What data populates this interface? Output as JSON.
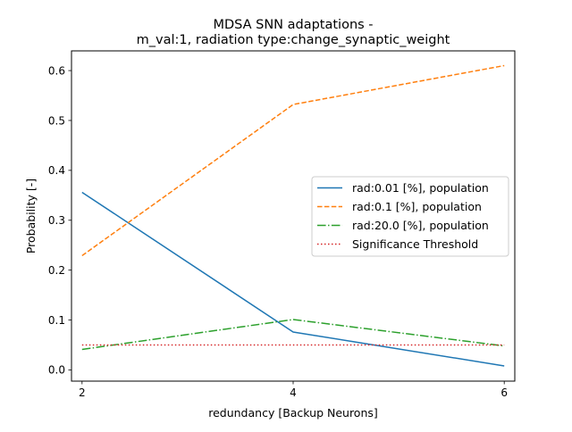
{
  "chart_data": {
    "type": "line",
    "title_lines": [
      "MDSA SNN adaptations -",
      "m_val:1, radiation type:change_synaptic_weight"
    ],
    "xlabel": "redundancy [Backup Neurons]",
    "ylabel": "Probability [-]",
    "xlim": [
      1.9,
      6.1
    ],
    "ylim": [
      -0.0225,
      0.6395
    ],
    "xticks": [
      2,
      4,
      6
    ],
    "yticks": [
      0.0,
      0.1,
      0.2,
      0.3,
      0.4,
      0.5,
      0.6
    ],
    "ytick_labels": [
      "0.0",
      "0.1",
      "0.2",
      "0.3",
      "0.4",
      "0.5",
      "0.6"
    ],
    "grid": false,
    "legend_position": "center-right",
    "x": [
      2,
      4,
      6
    ],
    "series": [
      {
        "name": "rad:0.01 [%], population",
        "values": [
          0.356,
          0.076,
          0.008
        ],
        "color": "#1f77b4",
        "style": "solid"
      },
      {
        "name": "rad:0.1 [%], population",
        "values": [
          0.229,
          0.532,
          0.61
        ],
        "color": "#ff7f0e",
        "style": "dashed"
      },
      {
        "name": "rad:20.0 [%], population",
        "values": [
          0.041,
          0.101,
          0.048
        ],
        "color": "#2ca02c",
        "style": "dashdot"
      },
      {
        "name": "Significance Threshold",
        "values": [
          0.05,
          0.05,
          0.05
        ],
        "color": "#d62728",
        "style": "dotted"
      }
    ]
  }
}
